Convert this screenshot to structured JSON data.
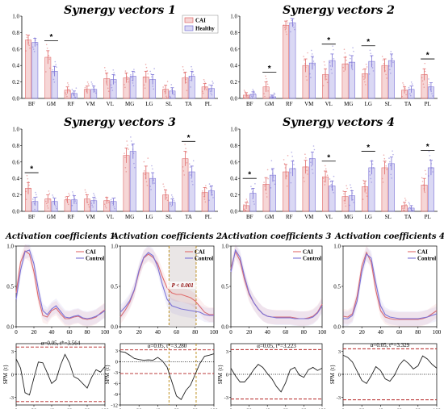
{
  "colors": {
    "cai": "#e06b6b",
    "healthy": "#7b72d6",
    "dashed": "#b22222",
    "spm": "#222222",
    "star_line": "#000000",
    "sig_shade": "#dcd5d5",
    "sig_line": "#b8860b"
  },
  "legend_bar": {
    "cai": "CAI",
    "healthy": "Healthy"
  },
  "legend_line": {
    "cai": "CAI",
    "control": "Control"
  },
  "chart_data": [
    {
      "type": "bar",
      "title": "Synergy vectors 1",
      "categories": [
        "BF",
        "GM",
        "RF",
        "VM",
        "VL",
        "MG",
        "LG",
        "SL",
        "TA",
        "PL"
      ],
      "ylim": [
        0,
        1
      ],
      "yticks": [
        "0.0",
        "0.2",
        "0.4",
        "0.6",
        "0.8",
        "1.0"
      ],
      "series": [
        {
          "name": "CAI",
          "values": [
            0.71,
            0.5,
            0.1,
            0.11,
            0.24,
            0.25,
            0.26,
            0.11,
            0.25,
            0.14
          ],
          "errors": [
            0.06,
            0.08,
            0.04,
            0.04,
            0.07,
            0.06,
            0.07,
            0.05,
            0.07,
            0.04
          ]
        },
        {
          "name": "Healthy",
          "values": [
            0.68,
            0.33,
            0.06,
            0.11,
            0.23,
            0.27,
            0.23,
            0.09,
            0.27,
            0.12
          ],
          "errors": [
            0.05,
            0.06,
            0.03,
            0.04,
            0.06,
            0.06,
            0.06,
            0.04,
            0.06,
            0.04
          ]
        }
      ],
      "significant": [
        "GM"
      ]
    },
    {
      "type": "bar",
      "title": "Synergy vectors 2",
      "categories": [
        "BF",
        "GM",
        "RF",
        "VM",
        "VL",
        "MG",
        "LG",
        "SL",
        "TA",
        "PL"
      ],
      "ylim": [
        0,
        1
      ],
      "yticks": [
        "0.0",
        "0.2",
        "0.4",
        "0.6",
        "0.8",
        "1.0"
      ],
      "series": [
        {
          "name": "CAI",
          "values": [
            0.04,
            0.14,
            0.89,
            0.4,
            0.29,
            0.42,
            0.3,
            0.4,
            0.1,
            0.29
          ],
          "errors": [
            0.03,
            0.06,
            0.05,
            0.08,
            0.07,
            0.08,
            0.06,
            0.08,
            0.04,
            0.07
          ]
        },
        {
          "name": "Healthy",
          "values": [
            0.05,
            0.02,
            0.92,
            0.43,
            0.46,
            0.44,
            0.45,
            0.46,
            0.11,
            0.14
          ],
          "errors": [
            0.03,
            0.02,
            0.05,
            0.08,
            0.08,
            0.08,
            0.07,
            0.08,
            0.04,
            0.05
          ]
        }
      ],
      "significant": [
        "GM",
        "VL",
        "LG",
        "PL"
      ]
    },
    {
      "type": "bar",
      "title": "Synergy vectors 3",
      "categories": [
        "BF",
        "GM",
        "RF",
        "VM",
        "VL",
        "MG",
        "LG",
        "SL",
        "TA",
        "PL"
      ],
      "ylim": [
        0,
        1
      ],
      "yticks": [
        "0.0",
        "0.2",
        "0.4",
        "0.6",
        "0.8",
        "1.0"
      ],
      "series": [
        {
          "name": "CAI",
          "values": [
            0.28,
            0.15,
            0.14,
            0.15,
            0.13,
            0.68,
            0.47,
            0.2,
            0.64,
            0.23
          ],
          "errors": [
            0.07,
            0.05,
            0.04,
            0.05,
            0.04,
            0.09,
            0.08,
            0.06,
            0.09,
            0.06
          ]
        },
        {
          "name": "Healthy",
          "values": [
            0.12,
            0.12,
            0.14,
            0.13,
            0.12,
            0.73,
            0.4,
            0.11,
            0.48,
            0.25
          ],
          "errors": [
            0.05,
            0.04,
            0.05,
            0.04,
            0.04,
            0.09,
            0.07,
            0.04,
            0.07,
            0.06
          ]
        }
      ],
      "significant": [
        "BF",
        "TA"
      ]
    },
    {
      "type": "bar",
      "title": "Synergy vectors 4",
      "categories": [
        "BF",
        "GM",
        "RF",
        "VM",
        "VL",
        "MG",
        "LG",
        "SL",
        "TA",
        "PL"
      ],
      "ylim": [
        0,
        1
      ],
      "yticks": [
        "0.0",
        "0.2",
        "0.4",
        "0.6",
        "0.8",
        "1.0"
      ],
      "series": [
        {
          "name": "CAI",
          "values": [
            0.07,
            0.33,
            0.48,
            0.54,
            0.42,
            0.18,
            0.3,
            0.53,
            0.07,
            0.32
          ],
          "errors": [
            0.04,
            0.08,
            0.09,
            0.08,
            0.07,
            0.06,
            0.07,
            0.08,
            0.04,
            0.08
          ]
        },
        {
          "name": "Healthy",
          "values": [
            0.22,
            0.44,
            0.52,
            0.64,
            0.31,
            0.19,
            0.53,
            0.58,
            0.04,
            0.53
          ],
          "errors": [
            0.06,
            0.08,
            0.09,
            0.08,
            0.06,
            0.06,
            0.08,
            0.08,
            0.03,
            0.09
          ]
        }
      ],
      "significant": [
        "BF",
        "VL",
        "LG",
        "PL"
      ]
    },
    {
      "type": "line",
      "title": "Activation coefficients 1",
      "x": [
        0,
        5,
        10,
        15,
        20,
        25,
        30,
        35,
        40,
        45,
        50,
        55,
        60,
        65,
        70,
        75,
        80,
        85,
        90,
        95,
        100
      ],
      "xlim": [
        0,
        100
      ],
      "xticks": [
        "0",
        "20",
        "40",
        "60",
        "80",
        "100"
      ],
      "ylim": [
        0,
        1
      ],
      "yticks": [
        "0.0",
        "0.5",
        "1.0"
      ],
      "series": [
        {
          "name": "CAI",
          "values": [
            0.42,
            0.8,
            0.94,
            0.9,
            0.68,
            0.36,
            0.14,
            0.12,
            0.2,
            0.23,
            0.16,
            0.1,
            0.1,
            0.12,
            0.13,
            0.1,
            0.09,
            0.1,
            0.12,
            0.17,
            0.21
          ]
        },
        {
          "name": "Control",
          "values": [
            0.34,
            0.7,
            0.93,
            0.95,
            0.78,
            0.46,
            0.2,
            0.15,
            0.22,
            0.26,
            0.19,
            0.12,
            0.11,
            0.13,
            0.14,
            0.11,
            0.1,
            0.11,
            0.13,
            0.16,
            0.2
          ]
        }
      ]
    },
    {
      "type": "line",
      "title": "Activation coefficients 2",
      "x": [
        0,
        5,
        10,
        15,
        20,
        25,
        30,
        35,
        40,
        45,
        50,
        55,
        60,
        65,
        70,
        75,
        80,
        85,
        90,
        95,
        100
      ],
      "xlim": [
        0,
        100
      ],
      "xticks": [
        "0",
        "20",
        "40",
        "60",
        "80",
        "100"
      ],
      "ylim": [
        0,
        1
      ],
      "yticks": [
        "0.0",
        "0.5",
        "1.0"
      ],
      "annotation": "P < 0.001",
      "sig_range": [
        52,
        81
      ],
      "series": [
        {
          "name": "CAI",
          "values": [
            0.12,
            0.2,
            0.3,
            0.45,
            0.68,
            0.85,
            0.9,
            0.86,
            0.78,
            0.62,
            0.48,
            0.42,
            0.4,
            0.4,
            0.38,
            0.36,
            0.32,
            0.25,
            0.18,
            0.15,
            0.15
          ]
        },
        {
          "name": "Control",
          "values": [
            0.18,
            0.24,
            0.32,
            0.46,
            0.7,
            0.86,
            0.92,
            0.88,
            0.74,
            0.52,
            0.34,
            0.26,
            0.24,
            0.22,
            0.21,
            0.2,
            0.19,
            0.18,
            0.15,
            0.14,
            0.14
          ]
        }
      ]
    },
    {
      "type": "line",
      "title": "Activation coefficients 3",
      "x": [
        0,
        5,
        10,
        15,
        20,
        25,
        30,
        35,
        40,
        45,
        50,
        55,
        60,
        65,
        70,
        75,
        80,
        85,
        90,
        95,
        100
      ],
      "xlim": [
        0,
        100
      ],
      "xticks": [
        "0",
        "20",
        "40",
        "60",
        "80",
        "100"
      ],
      "ylim": [
        0,
        1
      ],
      "yticks": [
        "0.0",
        "0.5",
        "1.0"
      ],
      "series": [
        {
          "name": "CAI",
          "values": [
            0.72,
            0.93,
            0.82,
            0.58,
            0.4,
            0.3,
            0.22,
            0.16,
            0.13,
            0.12,
            0.12,
            0.12,
            0.12,
            0.12,
            0.11,
            0.1,
            0.1,
            0.11,
            0.13,
            0.18,
            0.28
          ]
        },
        {
          "name": "Control",
          "values": [
            0.68,
            0.95,
            0.86,
            0.62,
            0.42,
            0.3,
            0.22,
            0.16,
            0.13,
            0.12,
            0.11,
            0.11,
            0.11,
            0.11,
            0.1,
            0.1,
            0.1,
            0.1,
            0.12,
            0.17,
            0.26
          ]
        }
      ]
    },
    {
      "type": "line",
      "title": "Activation coefficients 4",
      "x": [
        0,
        5,
        10,
        15,
        20,
        25,
        30,
        35,
        40,
        45,
        50,
        55,
        60,
        65,
        70,
        75,
        80,
        85,
        90,
        95,
        100
      ],
      "xlim": [
        0,
        100
      ],
      "xticks": [
        "0",
        "20",
        "40",
        "60",
        "80",
        "100"
      ],
      "ylim": [
        0,
        1
      ],
      "yticks": [
        "0.0",
        "0.5",
        "1.0"
      ],
      "series": [
        {
          "name": "CAI",
          "values": [
            0.13,
            0.12,
            0.16,
            0.38,
            0.75,
            0.92,
            0.8,
            0.45,
            0.2,
            0.12,
            0.1,
            0.09,
            0.09,
            0.09,
            0.09,
            0.09,
            0.09,
            0.1,
            0.12,
            0.16,
            0.2
          ]
        },
        {
          "name": "Control",
          "values": [
            0.1,
            0.1,
            0.14,
            0.32,
            0.68,
            0.9,
            0.85,
            0.54,
            0.26,
            0.15,
            0.12,
            0.11,
            0.1,
            0.1,
            0.1,
            0.1,
            0.1,
            0.11,
            0.12,
            0.14,
            0.16
          ]
        }
      ]
    },
    {
      "type": "line",
      "title": "",
      "x": [
        0,
        5,
        10,
        15,
        20,
        25,
        30,
        35,
        40,
        45,
        50,
        55,
        60,
        65,
        70,
        75,
        80,
        85,
        90,
        95,
        100
      ],
      "xlim": [
        0,
        100
      ],
      "xticks": [
        "0",
        "20",
        "40",
        "60",
        "80",
        "100"
      ],
      "ylim": [
        -4,
        4
      ],
      "yticks": [
        "-3",
        "0",
        "3"
      ],
      "ylabel": "SPM {t}",
      "annotation": "α=0.05, t*=3.564",
      "threshold": 3.564,
      "series": [
        {
          "name": "SPM t",
          "values": [
            2.0,
            0.8,
            -2.4,
            -2.7,
            -0.5,
            1.6,
            1.5,
            0.2,
            -1.2,
            -0.7,
            1.2,
            2.6,
            1.5,
            -0.3,
            -0.6,
            -1.2,
            -1.8,
            -0.4,
            0.6,
            0.3,
            1.0
          ]
        }
      ]
    },
    {
      "type": "line",
      "title": "",
      "x": [
        0,
        5,
        10,
        15,
        20,
        25,
        30,
        35,
        40,
        45,
        50,
        55,
        60,
        65,
        70,
        75,
        80,
        85,
        90,
        95,
        100
      ],
      "xlim": [
        0,
        100
      ],
      "xticks": [
        "0",
        "20",
        "40",
        "60",
        "80",
        "100"
      ],
      "ylim": [
        -12,
        5
      ],
      "yticks": [
        "-12",
        "-9",
        "-6",
        "-3",
        "0",
        "3"
      ],
      "ylabel": "SPM {t}",
      "annotation": "α=0.05, t*=3.280",
      "threshold": 3.28,
      "series": [
        {
          "name": "SPM t",
          "values": [
            2.8,
            2.6,
            1.8,
            0.9,
            0.6,
            0.4,
            0.5,
            0.4,
            1.2,
            0.2,
            -1.5,
            -5.5,
            -9.5,
            -10.5,
            -8.0,
            -6.5,
            -3.5,
            -0.5,
            1.5,
            1.8,
            2.2
          ]
        }
      ]
    },
    {
      "type": "line",
      "title": "",
      "x": [
        0,
        5,
        10,
        15,
        20,
        25,
        30,
        35,
        40,
        45,
        50,
        55,
        60,
        65,
        70,
        75,
        80,
        85,
        90,
        95,
        100
      ],
      "xlim": [
        0,
        100
      ],
      "xticks": [
        "0",
        "20",
        "40",
        "60",
        "80",
        "100"
      ],
      "ylim": [
        -4,
        4
      ],
      "yticks": [
        "-3",
        "0",
        "3"
      ],
      "ylabel": "SPM {t}",
      "annotation": "α=0.05, t*=3.223",
      "threshold": 3.223,
      "series": [
        {
          "name": "SPM t",
          "values": [
            0.8,
            -0.2,
            -1.0,
            -1.0,
            -0.3,
            0.6,
            1.3,
            0.9,
            0.1,
            -0.6,
            -1.6,
            -2.3,
            -1.1,
            0.6,
            0.9,
            -0.1,
            -0.4,
            0.6,
            0.9,
            0.5,
            0.8
          ]
        }
      ]
    },
    {
      "type": "line",
      "title": "",
      "x": [
        0,
        5,
        10,
        15,
        20,
        25,
        30,
        35,
        40,
        45,
        50,
        55,
        60,
        65,
        70,
        75,
        80,
        85,
        90,
        95,
        100
      ],
      "xlim": [
        0,
        100
      ],
      "xticks": [
        "0",
        "20",
        "40",
        "60",
        "80",
        "100"
      ],
      "ylim": [
        -4,
        4
      ],
      "yticks": [
        "-3",
        "0",
        "3"
      ],
      "ylabel": "SPM {t}",
      "annotation": "α=0.05, t*=3.329",
      "threshold": 3.329,
      "series": [
        {
          "name": "SPM t",
          "values": [
            2.5,
            2.2,
            1.6,
            0.4,
            -0.8,
            -1.2,
            -0.2,
            1.0,
            0.5,
            -0.6,
            -0.9,
            -0.1,
            1.2,
            1.9,
            1.4,
            0.7,
            1.1,
            2.4,
            2.0,
            1.3,
            0.8
          ]
        }
      ]
    }
  ]
}
